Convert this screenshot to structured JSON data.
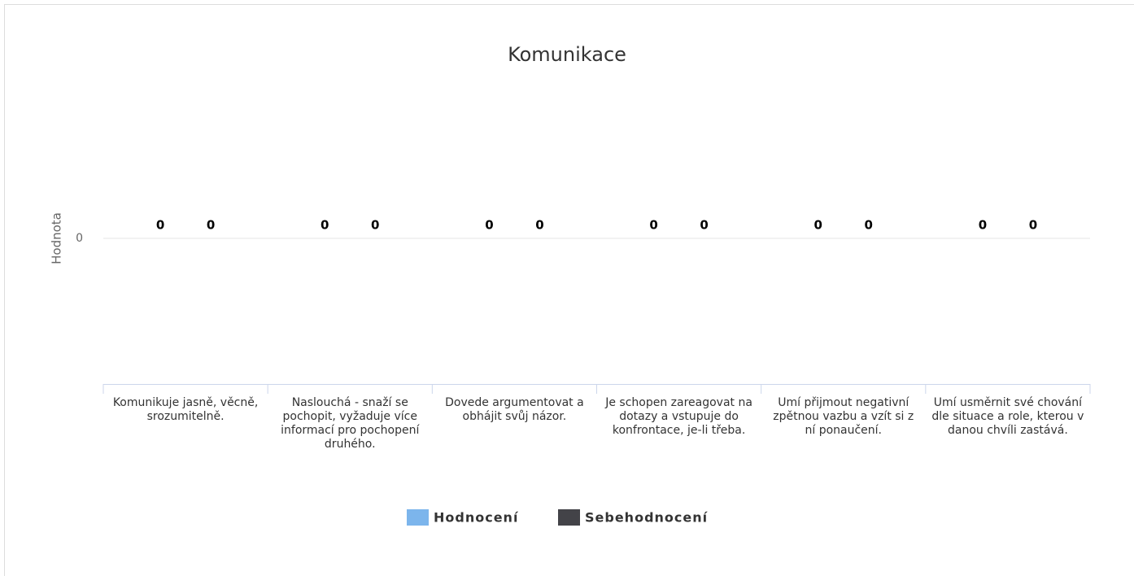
{
  "chart_data": {
    "type": "bar",
    "title": "Komunikace",
    "y_axis_label": "Hodnota",
    "categories": [
      "Komunikuje jasně, věcně, srozumitelně.",
      "Naslouchá - snaží se pochopit, vyžaduje více informací pro pochopení druhého.",
      "Dovede argumentovat a obhájit svůj názor.",
      "Je schopen zareagovat na dotazy a vstupuje do konfrontace, je-li třeba.",
      "Umí přijmout negativní zpětnou vazbu a vzít si z ní ponaučení.",
      "Umí usměrnit své chování dle situace a role, kterou v danou chvíli zastává."
    ],
    "series": [
      {
        "name": "Hodnocení",
        "color": "#7cb5ec",
        "values": [
          0,
          0,
          0,
          0,
          0,
          0
        ]
      },
      {
        "name": "Sebehodnocení",
        "color": "#434348",
        "values": [
          0,
          0,
          0,
          0,
          0,
          0
        ]
      }
    ],
    "ylim": [
      -1,
      1
    ],
    "yticks": [
      0
    ],
    "grid": true,
    "legend": "bottom"
  }
}
